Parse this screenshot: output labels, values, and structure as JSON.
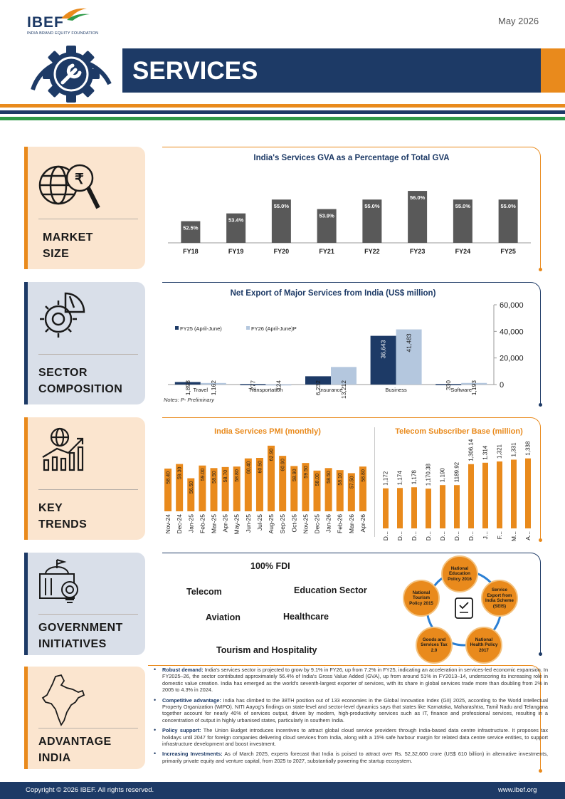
{
  "header": {
    "logo": "IBEF",
    "logo_sub": "INDIA BRAND EQUITY FOUNDATION",
    "date": "May 2026",
    "title": "SERVICES",
    "colors": {
      "navy": "#1d3a66",
      "orange": "#e98a1c",
      "green": "#2e9a48"
    }
  },
  "sections": {
    "market_size": [
      "MARKET",
      "SIZE"
    ],
    "sector_composition": [
      "SECTOR",
      "COMPOSITION"
    ],
    "key_trends": [
      "KEY",
      "TRENDS"
    ],
    "government_initiatives": [
      "GOVERNMENT",
      "INITIATIVES"
    ],
    "advantage_india": [
      "ADVANTAGE",
      "INDIA"
    ]
  },
  "icons": [
    "globe-rupee-magnifier-icon",
    "gear-chart-icon",
    "globe-growth-chart-icon",
    "government-building-gear-icon",
    "india-map-icon"
  ],
  "chart_data": [
    {
      "type": "bar",
      "title": "India's Services GVA as a Percentage of Total GVA",
      "categories": [
        "FY18",
        "FY19",
        "FY20",
        "FY21",
        "FY22",
        "FY23",
        "FY24",
        "FY25"
      ],
      "values": [
        52.5,
        53.4,
        55.0,
        53.9,
        55.0,
        56.0,
        55.0,
        55.0
      ],
      "labels": [
        "52.5%",
        "53.4%",
        "55.0%",
        "53.9%",
        "55.0%",
        "56.0%",
        "55.0%",
        "55.0%"
      ],
      "ylim": [
        50,
        56.5
      ],
      "color": "#595959"
    },
    {
      "type": "bar",
      "title": "Net Export of Major Services from India (US$ million)",
      "categories": [
        "Travel",
        "Transportation",
        "Insurance",
        "Business",
        "Software"
      ],
      "series": [
        {
          "name": "FY25 (April-June)",
          "values": [
            1898,
            277,
            6232,
            36643,
            330
          ],
          "labels": [
            "1,898",
            "277",
            "6,232",
            "36,643",
            "330"
          ],
          "color": "#1d3a66"
        },
        {
          "name": "FY26 (April-June)P",
          "values": [
            1162,
            124,
            13212,
            41483,
            1193
          ],
          "labels": [
            "1,162",
            "124",
            "13,212",
            "41,483",
            "1,193"
          ],
          "color": "#b4c7de"
        }
      ],
      "ylim": [
        0,
        60000
      ],
      "yticks": [
        "0",
        "20,000",
        "40,000",
        "60,000"
      ],
      "legend": "top-left",
      "note": "Notes: P- Preliminary"
    },
    {
      "type": "bar",
      "title": "India Services PMI (monthly)",
      "categories": [
        "Nov-24",
        "Dec-24",
        "Jan-25",
        "Feb-25",
        "Mar-25",
        "Apr-25",
        "May-25",
        "Jun-25",
        "Jul-25",
        "Aug-25",
        "Sep-25",
        "Oct-25",
        "Nov-25",
        "Dec-25",
        "Jan-26",
        "Feb-26",
        "Mar-26",
        "Apr-26"
      ],
      "values": [
        58.4,
        59.3,
        56.5,
        59.0,
        58.5,
        58.7,
        58.8,
        60.4,
        60.5,
        62.9,
        60.9,
        58.9,
        59.5,
        58.0,
        58.5,
        58.1,
        57.5,
        58.8
      ],
      "labels": [
        "58.40",
        "59.30",
        "56.50",
        "59.00",
        "58.50",
        "58.70",
        "58.80",
        "60.40",
        "60.50",
        "62.90",
        "60.90",
        "58.90",
        "59.50",
        "58.00",
        "58.50",
        "58.10",
        "57.50",
        "58.80"
      ],
      "ylim": [
        50,
        64
      ],
      "color": "#e98a1c"
    },
    {
      "type": "bar",
      "title": "Telecom Subscriber Base (million)",
      "categories": [
        "D...",
        "D...",
        "D...",
        "D...",
        "D...",
        "D...",
        "D...",
        "J...",
        "F...",
        "M...",
        "A..."
      ],
      "values": [
        1172,
        1174,
        1178,
        1170.38,
        1190,
        1189.92,
        1306.14,
        1314,
        1321,
        1331,
        1338
      ],
      "labels": [
        "1,172",
        "1,174",
        "1,178",
        "1,170.38",
        "1,190",
        "1189.92",
        "1,306.14",
        "1,314",
        "1,321",
        "1,331",
        "1,338"
      ],
      "ylim": [
        950,
        1400
      ],
      "color": "#e98a1c"
    }
  ],
  "gov": {
    "fdi": "100% FDI",
    "items": [
      "Telecom",
      "Education Sector",
      "Aviation",
      "Healthcare",
      "Tourism and Hospitality"
    ],
    "nodes": [
      "National Education Policy 2016",
      "Service Export from India Scheme (SEIS)",
      "National Health Policy 2017",
      "Goods and Services Tax 2.0",
      "National Tourism Policy 2015"
    ]
  },
  "advantage": [
    {
      "head": "Robust demand:",
      "text": "India's services sector is projected to grow by 9.1% in FY26, up from 7.2% in FY25, indicating an acceleration in services-led economic expansion. In FY2025–26, the sector contributed approximately 56.4% of India's Gross Value Added (GVA), up from around 51% in FY2013–14, underscoring its increasing role in domestic value creation. India has emerged as the world's seventh-largest exporter of services, with its share in global services trade more than doubling from 2% in 2005 to 4.3% in 2024."
    },
    {
      "head": "Competitive advantage:",
      "text": "India has climbed to the 38TH position out of 133 economies in the Global Innovation Index (GII) 2025, according to the World Intellectual Property Organization (WIPO). NITI Aayog's findings on state-level and sector-level dynamics says that states like Karnataka, Maharashtra, Tamil Nadu and Telangana together account for nearly 40% of services output, driven by modern, high-productivity services such as IT, finance and professional services, resulting in a concentration of output in highly urbanised states, particularly in southern India."
    },
    {
      "head": "Policy support:",
      "text": "The Union Budget introduces incentives to attract global cloud service providers through India-based data centre infrastructure. It proposes tax holidays until 2047 for foreign companies delivering cloud services from India, along with a 15% safe harbour margin for related data centre service entities, to support infrastructure development and boost investment."
    },
    {
      "head": "Increasing Investments:",
      "text": "As of March 2025, experts forecast that India is poised to attract over Rs. 52,32,600 crore (US$ 610 billion) in alternative investments, primarily private equity and venture capital, from 2025 to 2027, substantially powering the startup ecosystem."
    }
  ],
  "footer": {
    "left": "Copyright © 2026 IBEF. All rights reserved.",
    "right": "www.ibef.org"
  }
}
